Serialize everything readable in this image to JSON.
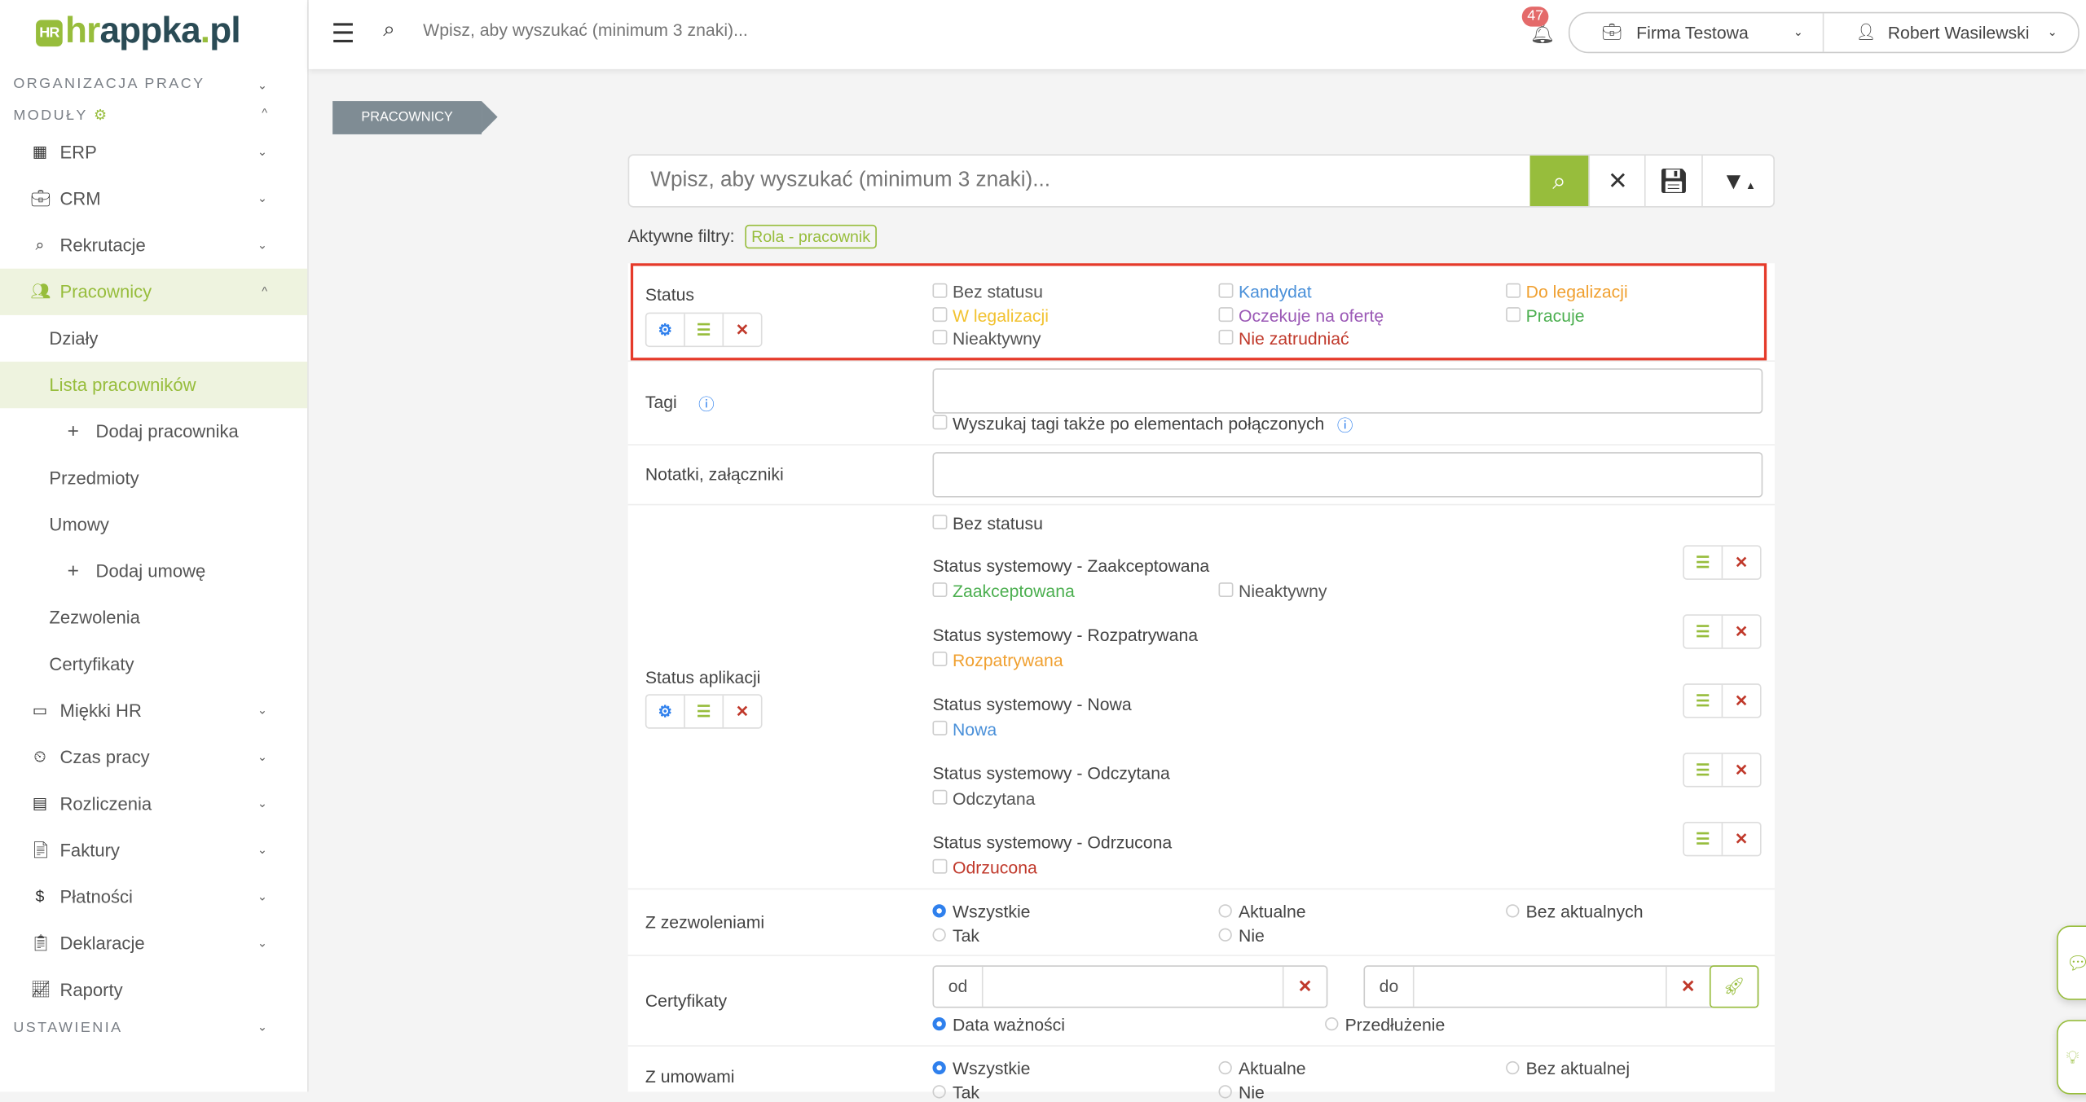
{
  "logo": {
    "prefix": "hr",
    "rest": "appka",
    "dot": ".",
    "tld": "pl"
  },
  "sidebar": {
    "section_org": "ORGANIZACJA PRACY",
    "section_modules": "MODUŁY",
    "section_settings": "USTAWIENIA",
    "items": [
      {
        "label": "ERP",
        "icon": "building-icon"
      },
      {
        "label": "CRM",
        "icon": "briefcase-icon"
      },
      {
        "label": "Rekrutacje",
        "icon": "search-icon"
      },
      {
        "label": "Pracownicy",
        "icon": "users-icon"
      },
      {
        "label": "Działy"
      },
      {
        "label": "Lista pracowników"
      },
      {
        "label": "Dodaj pracownika"
      },
      {
        "label": "Przedmioty"
      },
      {
        "label": "Umowy"
      },
      {
        "label": "Dodaj umowę"
      },
      {
        "label": "Zezwolenia"
      },
      {
        "label": "Certyfikaty"
      },
      {
        "label": "Miękki HR",
        "icon": "person-board-icon"
      },
      {
        "label": "Czas pracy",
        "icon": "truck-clock-icon"
      },
      {
        "label": "Rozliczenia",
        "icon": "calculator-icon"
      },
      {
        "label": "Faktury",
        "icon": "invoice-icon"
      },
      {
        "label": "Płatności",
        "icon": "dollar-icon"
      },
      {
        "label": "Deklaracje",
        "icon": "declaration-icon"
      },
      {
        "label": "Raporty",
        "icon": "chart-icon"
      }
    ]
  },
  "topbar": {
    "search_placeholder": "Wpisz, aby wyszukać (minimum 3 znaki)...",
    "notifications": "47",
    "company": "Firma Testowa",
    "user": "Robert Wasilewski"
  },
  "breadcrumb": "PRACOWNICY",
  "search": {
    "placeholder": "Wpisz, aby wyszukać (minimum 3 znaki)...",
    "value": ""
  },
  "active_filters": {
    "label": "Aktywne filtry:",
    "tags": [
      "Rola - pracownik"
    ]
  },
  "filters": {
    "status": {
      "label": "Status",
      "options": [
        {
          "label": "Bez statusu",
          "color": "#555555"
        },
        {
          "label": "Kandydat",
          "color": "#4a90d9"
        },
        {
          "label": "Do legalizacji",
          "color": "#f0a030"
        },
        {
          "label": "W legalizacji",
          "color": "#f2c230"
        },
        {
          "label": "Oczekuje na ofertę",
          "color": "#9b59b6"
        },
        {
          "label": "Pracuje",
          "color": "#4caf50"
        },
        {
          "label": "Nieaktywny",
          "color": "#555555"
        },
        {
          "label": "Nie zatrudniać",
          "color": "#c0392b"
        }
      ]
    },
    "tags": {
      "label": "Tagi",
      "value": "",
      "linked_label": "Wyszukaj tagi także po elementach połączonych"
    },
    "notes": {
      "label": "Notatki, załączniki",
      "value": ""
    },
    "app_status": {
      "label": "Status aplikacji",
      "none": "Bez statusu",
      "groups": [
        {
          "title": "Status systemowy - Zaakceptowana",
          "options": [
            {
              "label": "Zaakceptowana",
              "color": "#4caf50"
            },
            {
              "label": "Nieaktywny",
              "color": "#555555"
            }
          ]
        },
        {
          "title": "Status systemowy - Rozpatrywana",
          "options": [
            {
              "label": "Rozpatrywana",
              "color": "#f0a030"
            }
          ]
        },
        {
          "title": "Status systemowy - Nowa",
          "options": [
            {
              "label": "Nowa",
              "color": "#4a90d9"
            }
          ]
        },
        {
          "title": "Status systemowy - Odczytana",
          "options": [
            {
              "label": "Odczytana",
              "color": "#555555"
            }
          ]
        },
        {
          "title": "Status systemowy - Odrzucona",
          "options": [
            {
              "label": "Odrzucona",
              "color": "#c0392b"
            }
          ]
        }
      ]
    },
    "permits": {
      "label": "Z zezwoleniami",
      "options": [
        "Wszystkie",
        "Aktualne",
        "Bez aktualnych",
        "Tak",
        "Nie"
      ],
      "selected": "Wszystkie"
    },
    "certs": {
      "label": "Certyfikaty",
      "from": "od",
      "to": "do",
      "from_value": "",
      "to_value": "",
      "modes": [
        "Data ważności",
        "Przedłużenie"
      ],
      "selected": "Data ważności"
    },
    "contracts": {
      "label": "Z umowami",
      "options": [
        "Wszystkie",
        "Aktualne",
        "Bez aktualnej",
        "Tak",
        "Nie"
      ],
      "selected": "Wszystkie"
    }
  }
}
